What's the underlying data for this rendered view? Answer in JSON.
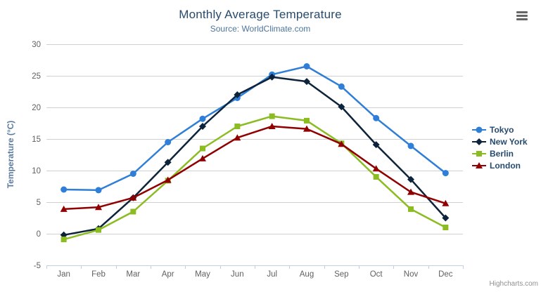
{
  "chart_data": {
    "type": "line",
    "title": "Monthly Average Temperature",
    "subtitle": "Source: WorldClimate.com",
    "xlabel": "",
    "ylabel": "Temperature (°C)",
    "categories": [
      "Jan",
      "Feb",
      "Mar",
      "Apr",
      "May",
      "Jun",
      "Jul",
      "Aug",
      "Sep",
      "Oct",
      "Nov",
      "Dec"
    ],
    "ylim": [
      -5,
      30
    ],
    "ytick_interval": 5,
    "grid": true,
    "legend_position": "right",
    "series": [
      {
        "name": "Tokyo",
        "color": "#2f7ed8",
        "marker": "circle",
        "values": [
          7.0,
          6.9,
          9.5,
          14.5,
          18.2,
          21.5,
          25.2,
          26.5,
          23.3,
          18.3,
          13.9,
          9.6
        ]
      },
      {
        "name": "New York",
        "color": "#0d233a",
        "marker": "diamond",
        "values": [
          -0.2,
          0.8,
          5.7,
          11.3,
          17.0,
          22.0,
          24.8,
          24.1,
          20.1,
          14.1,
          8.6,
          2.5
        ]
      },
      {
        "name": "Berlin",
        "color": "#8bbc21",
        "marker": "square",
        "values": [
          -0.9,
          0.6,
          3.5,
          8.4,
          13.5,
          17.0,
          18.6,
          17.9,
          14.3,
          9.0,
          3.9,
          1.0
        ]
      },
      {
        "name": "London",
        "color": "#910000",
        "marker": "triangle",
        "values": [
          3.9,
          4.2,
          5.7,
          8.5,
          11.9,
          15.2,
          17.0,
          16.6,
          14.2,
          10.3,
          6.6,
          4.8
        ]
      }
    ],
    "credits": "Highcharts.com",
    "colors": {
      "grid_line": "#d0d0d0",
      "axis_line": "#c0d0e0",
      "axis_label": "#606060",
      "title": "#274b6d",
      "subtitle": "#4d759e",
      "credits": "#909090"
    }
  }
}
